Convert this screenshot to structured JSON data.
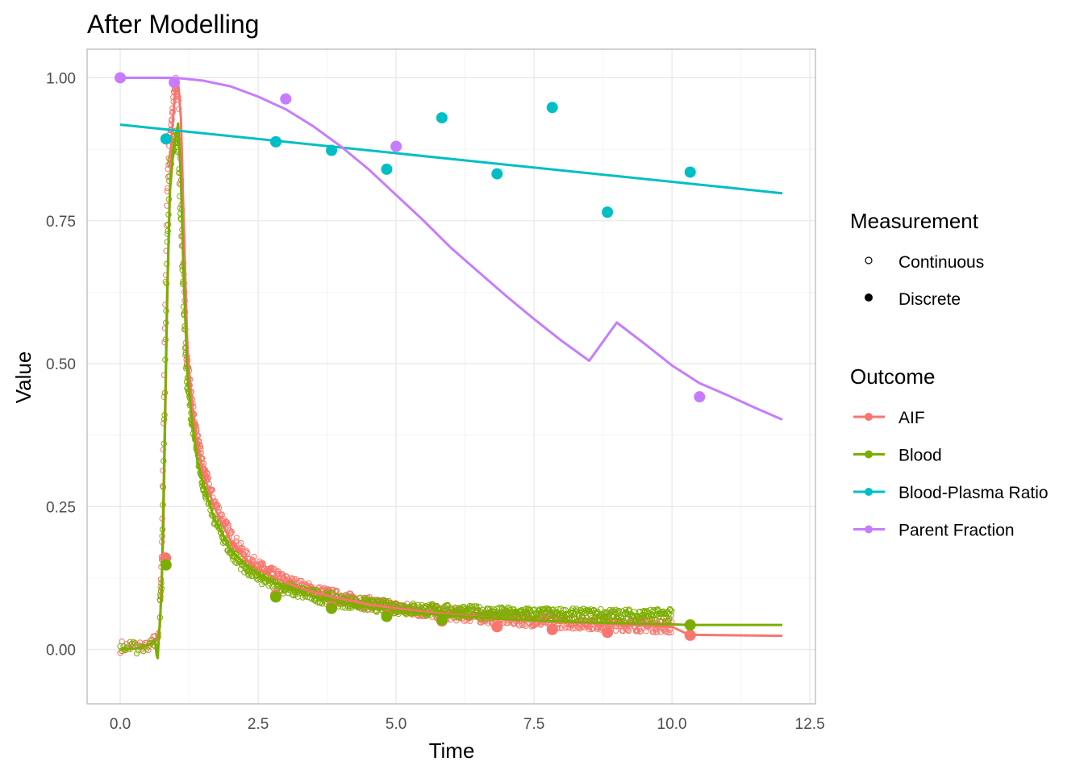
{
  "chart_data": {
    "type": "scatter",
    "title": "After Modelling",
    "xlabel": "Time",
    "ylabel": "Value",
    "xlim": [
      -0.6,
      12.6
    ],
    "ylim": [
      -0.095,
      1.05
    ],
    "x_ticks": [
      0,
      2.5,
      5,
      7.5,
      10,
      12.5
    ],
    "x_tick_labels": [
      "0.0",
      "2.5",
      "5.0",
      "7.5",
      "10.0",
      "12.5"
    ],
    "y_ticks": [
      0,
      0.25,
      0.5,
      0.75,
      1.0
    ],
    "y_tick_labels": [
      "0.00",
      "0.25",
      "0.50",
      "0.75",
      "1.00"
    ],
    "grid": true,
    "legend_position": "right",
    "legend_measurement": {
      "title": "Measurement",
      "items": [
        "Continuous",
        "Discrete"
      ]
    },
    "legend_outcome": {
      "title": "Outcome",
      "items": [
        {
          "label": "AIF",
          "color": "#F8766D"
        },
        {
          "label": "Blood",
          "color": "#7CAE00"
        },
        {
          "label": "Blood-Plasma Ratio",
          "color": "#00BFC4"
        },
        {
          "label": "Parent Fraction",
          "color": "#C77CFF"
        }
      ]
    },
    "series": [
      {
        "name": "AIF",
        "color": "#F8766D",
        "discrete": [
          [
            0.82,
            0.16
          ],
          [
            2.82,
            0.095
          ],
          [
            3.83,
            0.075
          ],
          [
            4.83,
            0.06
          ],
          [
            5.83,
            0.05
          ],
          [
            6.83,
            0.04
          ],
          [
            7.83,
            0.035
          ],
          [
            8.83,
            0.03
          ],
          [
            10.33,
            0.025
          ]
        ],
        "fit": [
          [
            0,
            0
          ],
          [
            0.3,
            0.002
          ],
          [
            0.5,
            0.006
          ],
          [
            0.65,
            0.015
          ],
          [
            0.72,
            0.04
          ],
          [
            0.78,
            0.2
          ],
          [
            0.85,
            0.6
          ],
          [
            0.92,
            0.88
          ],
          [
            1.0,
            0.985
          ],
          [
            1.05,
            0.99
          ],
          [
            1.1,
            0.93
          ],
          [
            1.15,
            0.75
          ],
          [
            1.22,
            0.52
          ],
          [
            1.3,
            0.43
          ],
          [
            1.4,
            0.36
          ],
          [
            1.5,
            0.31
          ],
          [
            1.7,
            0.25
          ],
          [
            2.0,
            0.19
          ],
          [
            2.3,
            0.155
          ],
          [
            2.6,
            0.135
          ],
          [
            3.0,
            0.117
          ],
          [
            3.5,
            0.1
          ],
          [
            4.0,
            0.089
          ],
          [
            4.5,
            0.079
          ],
          [
            5.0,
            0.072
          ],
          [
            5.5,
            0.066
          ],
          [
            6.0,
            0.061
          ],
          [
            6.5,
            0.057
          ],
          [
            7.0,
            0.053
          ],
          [
            7.5,
            0.05
          ],
          [
            8.0,
            0.048
          ],
          [
            9.0,
            0.044
          ],
          [
            10.0,
            0.04
          ],
          [
            10.3,
            0.026
          ],
          [
            11.0,
            0.025
          ],
          [
            12.0,
            0.024
          ]
        ],
        "continuous_trend": [
          [
            0,
            0.005
          ],
          [
            0.3,
            0.004
          ],
          [
            0.5,
            0.008
          ],
          [
            0.62,
            0.015
          ],
          [
            0.7,
            0.03
          ],
          [
            0.75,
            0.15
          ],
          [
            0.8,
            0.5
          ],
          [
            0.85,
            0.8
          ],
          [
            0.9,
            0.9
          ],
          [
            1.0,
            0.99
          ],
          [
            1.05,
            0.97
          ],
          [
            1.1,
            0.82
          ],
          [
            1.15,
            0.65
          ],
          [
            1.2,
            0.52
          ],
          [
            1.3,
            0.43
          ],
          [
            1.4,
            0.37
          ],
          [
            1.5,
            0.32
          ],
          [
            1.7,
            0.26
          ],
          [
            2.0,
            0.2
          ],
          [
            2.3,
            0.16
          ],
          [
            2.6,
            0.14
          ],
          [
            3.0,
            0.12
          ],
          [
            3.5,
            0.103
          ],
          [
            4.0,
            0.091
          ],
          [
            4.5,
            0.081
          ],
          [
            5.0,
            0.073
          ],
          [
            5.5,
            0.067
          ],
          [
            6.0,
            0.062
          ],
          [
            6.5,
            0.058
          ],
          [
            7.0,
            0.054
          ],
          [
            7.5,
            0.051
          ],
          [
            8.0,
            0.048
          ],
          [
            9.0,
            0.044
          ],
          [
            10.0,
            0.04
          ]
        ]
      },
      {
        "name": "Blood",
        "color": "#7CAE00",
        "discrete": [
          [
            0.83,
            0.148
          ],
          [
            2.82,
            0.092
          ],
          [
            3.83,
            0.072
          ],
          [
            4.83,
            0.058
          ],
          [
            5.83,
            0.052
          ],
          [
            10.33,
            0.043
          ]
        ],
        "fit": [
          [
            0,
            0
          ],
          [
            0.3,
            0.002
          ],
          [
            0.55,
            0.01
          ],
          [
            0.63,
            0.018
          ],
          [
            0.66,
            -0.01
          ],
          [
            0.68,
            -0.015
          ],
          [
            0.7,
            0.02
          ],
          [
            0.75,
            0.1
          ],
          [
            0.8,
            0.35
          ],
          [
            0.85,
            0.62
          ],
          [
            0.9,
            0.8
          ],
          [
            0.97,
            0.88
          ],
          [
            1.05,
            0.92
          ],
          [
            1.1,
            0.82
          ],
          [
            1.15,
            0.65
          ],
          [
            1.22,
            0.48
          ],
          [
            1.3,
            0.4
          ],
          [
            1.4,
            0.33
          ],
          [
            1.5,
            0.29
          ],
          [
            1.7,
            0.23
          ],
          [
            2.0,
            0.175
          ],
          [
            2.3,
            0.145
          ],
          [
            2.6,
            0.125
          ],
          [
            3.0,
            0.108
          ],
          [
            3.5,
            0.093
          ],
          [
            4.0,
            0.082
          ],
          [
            4.5,
            0.074
          ],
          [
            5.0,
            0.068
          ],
          [
            5.5,
            0.063
          ],
          [
            6.0,
            0.059
          ],
          [
            6.5,
            0.056
          ],
          [
            7.0,
            0.053
          ],
          [
            7.5,
            0.051
          ],
          [
            8.0,
            0.049
          ],
          [
            9.0,
            0.046
          ],
          [
            10.0,
            0.044
          ],
          [
            10.3,
            0.043
          ],
          [
            12.0,
            0.043
          ]
        ],
        "continuous_trend": [
          [
            0,
            0.003
          ],
          [
            0.3,
            0.003
          ],
          [
            0.5,
            0.007
          ],
          [
            0.62,
            0.012
          ],
          [
            0.7,
            0.03
          ],
          [
            0.75,
            0.12
          ],
          [
            0.8,
            0.4
          ],
          [
            0.85,
            0.7
          ],
          [
            0.9,
            0.84
          ],
          [
            1.0,
            0.9
          ],
          [
            1.05,
            0.88
          ],
          [
            1.1,
            0.75
          ],
          [
            1.15,
            0.6
          ],
          [
            1.2,
            0.48
          ],
          [
            1.3,
            0.4
          ],
          [
            1.4,
            0.34
          ],
          [
            1.5,
            0.29
          ],
          [
            1.7,
            0.23
          ],
          [
            2.0,
            0.17
          ],
          [
            2.3,
            0.14
          ],
          [
            2.6,
            0.122
          ],
          [
            3.0,
            0.107
          ],
          [
            3.5,
            0.094
          ],
          [
            4.0,
            0.085
          ],
          [
            4.5,
            0.078
          ],
          [
            5.0,
            0.073
          ],
          [
            5.5,
            0.07
          ],
          [
            6.0,
            0.067
          ],
          [
            6.5,
            0.065
          ],
          [
            7.0,
            0.063
          ],
          [
            7.5,
            0.062
          ],
          [
            8.0,
            0.061
          ],
          [
            9.0,
            0.06
          ],
          [
            10.0,
            0.06
          ]
        ]
      },
      {
        "name": "Blood-Plasma Ratio",
        "color": "#00BFC4",
        "discrete": [
          [
            0.83,
            0.893
          ],
          [
            2.82,
            0.888
          ],
          [
            3.83,
            0.873
          ],
          [
            4.83,
            0.84
          ],
          [
            5.83,
            0.93
          ],
          [
            6.83,
            0.832
          ],
          [
            7.83,
            0.948
          ],
          [
            8.83,
            0.765
          ],
          [
            10.33,
            0.835
          ]
        ],
        "fit": [
          [
            0,
            0.918
          ],
          [
            12,
            0.798
          ]
        ]
      },
      {
        "name": "Parent Fraction",
        "color": "#C77CFF",
        "discrete": [
          [
            0,
            1.0
          ],
          [
            0.98,
            0.992
          ],
          [
            3.0,
            0.963
          ],
          [
            5.0,
            0.88
          ],
          [
            10.5,
            0.442
          ]
        ],
        "fit": [
          [
            0,
            1.0
          ],
          [
            1.0,
            1.0
          ],
          [
            1.5,
            0.995
          ],
          [
            2.0,
            0.985
          ],
          [
            2.5,
            0.967
          ],
          [
            3.0,
            0.945
          ],
          [
            3.5,
            0.915
          ],
          [
            4.0,
            0.88
          ],
          [
            4.5,
            0.84
          ],
          [
            5.0,
            0.795
          ],
          [
            5.5,
            0.75
          ],
          [
            6.0,
            0.702
          ],
          [
            6.5,
            0.66
          ],
          [
            7.0,
            0.618
          ],
          [
            7.5,
            0.578
          ],
          [
            8.0,
            0.54
          ],
          [
            8.5,
            0.505
          ],
          [
            9.0,
            0.572
          ],
          [
            9.5,
            0.535
          ],
          [
            10.0,
            0.497
          ],
          [
            10.5,
            0.466
          ],
          [
            11.0,
            0.445
          ],
          [
            11.5,
            0.423
          ],
          [
            12.0,
            0.402
          ]
        ]
      }
    ]
  }
}
